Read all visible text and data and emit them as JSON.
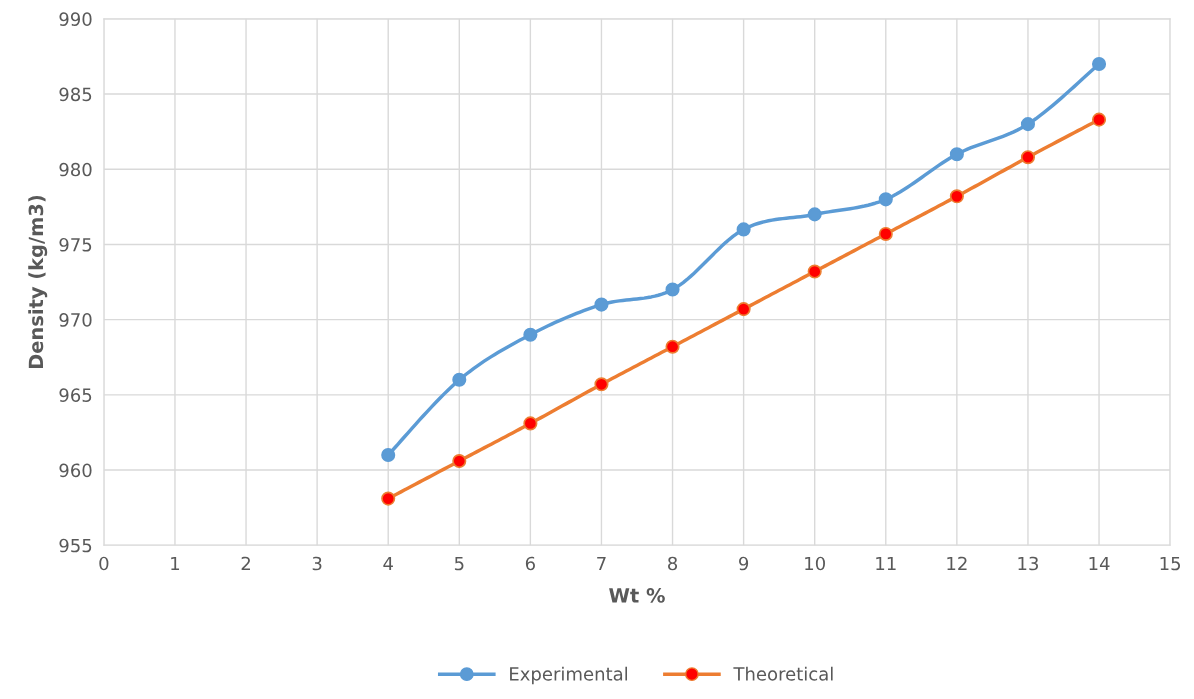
{
  "chart_data": {
    "type": "line",
    "xlabel": "Wt %",
    "ylabel": "Density (kg/m3)",
    "x": [
      4,
      5,
      6,
      7,
      8,
      9,
      10,
      11,
      12,
      13,
      14
    ],
    "series": [
      {
        "name": "Experimental",
        "color": "#5b9bd5",
        "values": [
          961,
          966,
          969,
          971,
          972,
          976,
          977,
          978,
          981,
          983,
          987
        ]
      },
      {
        "name": "Theoretical",
        "color": "#ed7d31",
        "colors": [
          "#ff0000",
          "#ff0000",
          "#ff0000",
          "#ff0000",
          "#ff0000",
          "#ff0000",
          "#ff0000",
          "#ff0000",
          "#ff0000",
          "#ff0000",
          "#ff0000"
        ],
        "values": [
          958.1,
          960.6,
          963.1,
          965.7,
          968.2,
          970.7,
          973.2,
          975.7,
          978.2,
          980.8,
          983.3
        ]
      }
    ],
    "xlim": [
      0,
      15
    ],
    "xticks": [
      0,
      1,
      2,
      3,
      4,
      5,
      6,
      7,
      8,
      9,
      10,
      11,
      12,
      13,
      14,
      15
    ],
    "ylim": [
      955,
      990
    ],
    "yticks": [
      955,
      960,
      965,
      970,
      975,
      980,
      985,
      990
    ],
    "grid": true,
    "legend": "bottom",
    "marker": "circle",
    "line_style": "solid"
  }
}
